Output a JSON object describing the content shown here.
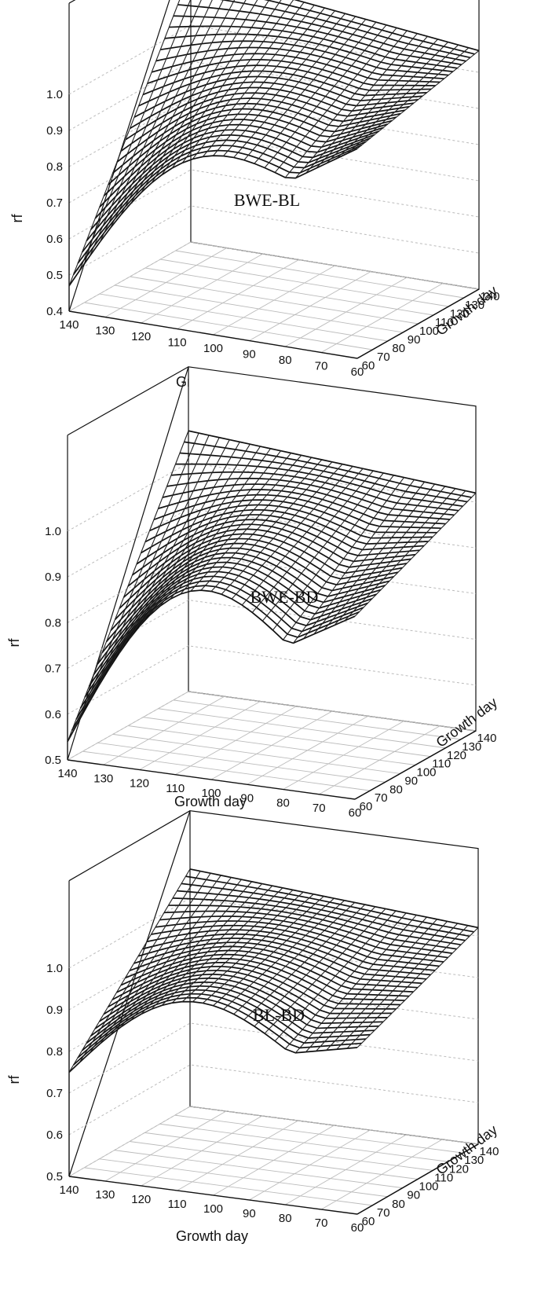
{
  "chart_data": [
    {
      "type": "surface",
      "label": "BWE-BL",
      "zlabel": "rf",
      "xlabel": "Growth day",
      "ylabel": "Growth day",
      "x_ticks": [
        "140",
        "130",
        "120",
        "110",
        "100",
        "90",
        "80",
        "70",
        "60"
      ],
      "y_ticks": [
        "60",
        "70",
        "80",
        "90",
        "100",
        "110",
        "120",
        "130",
        "140"
      ],
      "z_ticks": [
        "0.4",
        "0.5",
        "0.6",
        "0.7",
        "0.8",
        "0.9",
        "1.0"
      ],
      "zlim": [
        0.4,
        1.0
      ],
      "surface": {
        "peak": 1.15,
        "corner_x140_y60": 0.47,
        "corner_x60_y60": 0.98,
        "corner_x60_y140": 1.06,
        "edge_mid_x90_y60": 0.98
      }
    },
    {
      "type": "surface",
      "label": "BWE-BD",
      "zlabel": "rf",
      "xlabel": "Growth day",
      "ylabel": "Growth day",
      "x_ticks": [
        "140",
        "130",
        "120",
        "110",
        "100",
        "90",
        "80",
        "70",
        "60"
      ],
      "y_ticks": [
        "60",
        "70",
        "80",
        "90",
        "100",
        "110",
        "120",
        "130",
        "140"
      ],
      "z_ticks": [
        "0.5",
        "0.6",
        "0.7",
        "0.8",
        "0.9",
        "1.0"
      ],
      "zlim": [
        0.5,
        1.0
      ],
      "surface": {
        "peak": 1.07,
        "corner_x140_y60": 0.54,
        "corner_x60_y60": 0.9,
        "corner_x60_y140": 1.02,
        "edge_mid_x90_y60": 0.98
      }
    },
    {
      "type": "surface",
      "label": "BL-BD",
      "zlabel": "rf",
      "xlabel": "Growth day",
      "ylabel": "Growth day",
      "x_ticks": [
        "140",
        "130",
        "120",
        "110",
        "100",
        "90",
        "80",
        "70",
        "60"
      ],
      "y_ticks": [
        "60",
        "70",
        "80",
        "90",
        "100",
        "110",
        "120",
        "130",
        "140"
      ],
      "z_ticks": [
        "0.5",
        "0.6",
        "0.7",
        "0.8",
        "0.9",
        "1.0"
      ],
      "zlim": [
        0.5,
        1.0
      ],
      "surface": {
        "peak": 1.07,
        "corner_x140_y60": 0.75,
        "corner_x60_y60": 0.9,
        "corner_x60_y140": 1.02,
        "edge_mid_x90_y60": 0.99
      }
    }
  ]
}
